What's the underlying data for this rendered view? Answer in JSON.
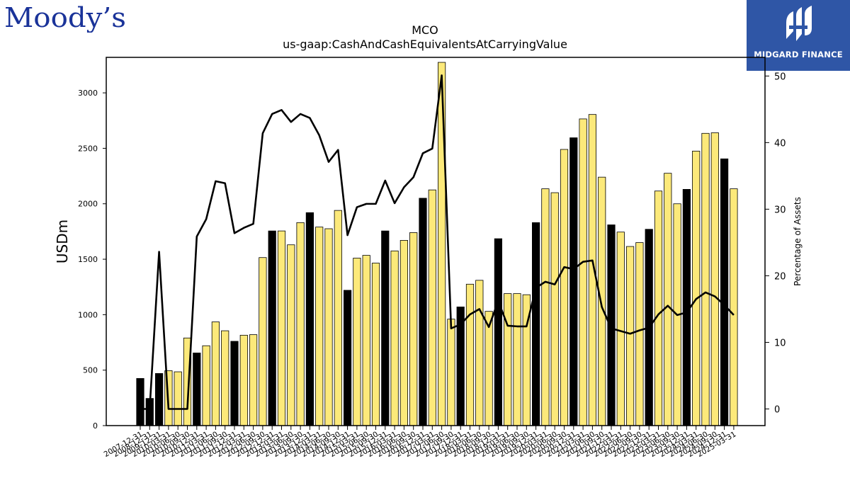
{
  "brand": {
    "left_logo_text": "Moody’s",
    "right_logo_text": "MIDGARD FINANCE",
    "moodys_color": "#1a3399",
    "midgard_color": "#2f56a6"
  },
  "chart_data": {
    "type": "bar+line",
    "title": "MCO",
    "subtitle": "us-gaap:CashAndCashEquivalentsAtCarryingValue",
    "ylabel": "USDm",
    "y2label": "Percentage of Assets",
    "ylim": [
      0,
      3320
    ],
    "y2lim": [
      -2.5,
      52.8
    ],
    "yticks": [
      0,
      500,
      1000,
      1500,
      2000,
      2500,
      3000
    ],
    "y2ticks": [
      0,
      10,
      20,
      30,
      40,
      50
    ],
    "grid": false,
    "bar_colors": {
      "annual": "#000000",
      "quarterly": "#fce97a"
    },
    "categories": [
      "2007-12-31",
      "2008-12-31",
      "2009-12-31",
      "2010-03-31",
      "2010-06-30",
      "2010-09-30",
      "2010-12-31",
      "2011-03-31",
      "2011-06-30",
      "2011-09-30",
      "2011-12-31",
      "2012-03-31",
      "2012-06-30",
      "2012-09-30",
      "2012-12-31",
      "2013-03-31",
      "2013-06-30",
      "2013-09-30",
      "2013-12-31",
      "2014-03-31",
      "2014-06-30",
      "2014-09-30",
      "2014-12-31",
      "2015-03-31",
      "2015-06-30",
      "2015-09-30",
      "2015-12-31",
      "2016-03-31",
      "2016-06-30",
      "2016-09-30",
      "2016-12-31",
      "2017-03-31",
      "2017-06-30",
      "2017-09-30",
      "2017-12-31",
      "2018-03-31",
      "2018-06-30",
      "2018-09-30",
      "2018-12-31",
      "2019-03-31",
      "2019-06-30",
      "2019-09-30",
      "2019-12-31",
      "2020-03-31",
      "2020-06-30",
      "2020-09-30",
      "2020-12-31",
      "2021-03-31",
      "2021-06-30",
      "2021-09-30",
      "2021-12-31",
      "2022-03-31",
      "2022-06-30",
      "2022-09-30",
      "2022-12-31",
      "2023-03-31",
      "2023-06-30",
      "2023-09-30",
      "2023-12-31",
      "2024-03-31",
      "2024-06-30",
      "2024-09-30",
      "2024-12-31",
      "2025-03-31"
    ],
    "tick_labels": [
      "2007-12-31",
      "2008-12-31",
      "2009-12-31",
      "2010-03-31",
      "2010-06-30",
      "2010-09-30",
      "2010-12-31",
      "2011-03-31",
      "2011-06-30",
      "2011-09-30",
      "2011-12-31",
      "2012-03-31",
      "2012-06-30",
      "2012-09-30",
      "2012-12-31",
      "2013-03-31",
      "2013-06-30",
      "2013-09-30",
      "2013-12-31",
      "2014-03-31",
      "2014-06-30",
      "2014-09-30",
      "2014-12-31",
      "2015-03-31",
      "2015-06-30",
      "2015-09-30",
      "2015-12-31",
      "2016-03-31",
      "2016-06-30",
      "2016-09-30",
      "2016-12-31",
      "2017-03-31",
      "2017-06-30",
      "2017-09-30",
      "2017-12-31",
      "2018-03-31",
      "2018-06-30",
      "2018-09-30",
      "2018-12-31",
      "2019-03-31",
      "2019-06-30",
      "2019-09-30",
      "2019-12-31",
      "2020-03-31",
      "2020-06-30",
      "2020-09-30",
      "2020-12-31",
      "2021-03-31",
      "2021-06-30",
      "2021-09-30",
      "2021-12-31",
      "2022-03-31",
      "2022-06-30",
      "2022-09-30",
      "2022-12-31",
      "2023-03-31",
      "2023-06-30",
      "2023-09-30",
      "2023-12-31",
      "2024-03-31",
      "2024-06-30",
      "2024-09-30",
      "2024-12-31",
      "2025-03-31"
    ],
    "annual_flags": [
      1,
      1,
      1,
      0,
      0,
      0,
      1,
      0,
      0,
      0,
      1,
      0,
      0,
      0,
      1,
      0,
      0,
      0,
      1,
      0,
      0,
      0,
      1,
      0,
      0,
      0,
      1,
      0,
      0,
      0,
      1,
      0,
      0,
      0,
      1,
      0,
      0,
      0,
      1,
      0,
      0,
      0,
      1,
      0,
      0,
      0,
      1,
      0,
      0,
      0,
      1,
      0,
      0,
      0,
      1,
      0,
      0,
      0,
      1,
      0,
      0,
      0,
      1,
      0
    ],
    "values_usdm": [
      425,
      245,
      470,
      495,
      485,
      790,
      655,
      720,
      935,
      855,
      760,
      815,
      820,
      1515,
      1755,
      1755,
      1630,
      1830,
      1920,
      1790,
      1775,
      1940,
      1220,
      1510,
      1535,
      1465,
      1755,
      1575,
      1670,
      1740,
      2050,
      2125,
      3275,
      960,
      1070,
      1275,
      1310,
      1030,
      1685,
      1190,
      1190,
      1180,
      1830,
      2135,
      2100,
      2490,
      2595,
      2765,
      2805,
      2240,
      1810,
      1745,
      1615,
      1650,
      1770,
      2115,
      2275,
      2000,
      2130,
      2475,
      2635,
      2640,
      2405,
      2135
    ],
    "pct_of_assets": [
      0,
      0,
      23.6,
      0,
      0,
      0,
      25.9,
      28.5,
      34.2,
      33.9,
      26.4,
      27.2,
      27.8,
      41.4,
      44.3,
      44.9,
      43.1,
      44.3,
      43.7,
      41.1,
      37.1,
      38.9,
      26.1,
      30.3,
      30.8,
      30.8,
      34.3,
      30.9,
      33.3,
      34.8,
      38.4,
      39.1,
      50.1,
      12.1,
      12.7,
      14.2,
      15.0,
      12.3,
      16.2,
      12.5,
      12.4,
      12.4,
      18.2,
      19.1,
      18.7,
      21.3,
      21.0,
      22.1,
      22.3,
      15.3,
      12.1,
      11.7,
      11.3,
      11.8,
      12.2,
      14.2,
      15.5,
      14.1,
      14.5,
      16.5,
      17.5,
      16.9,
      15.6,
      14.1
    ]
  }
}
